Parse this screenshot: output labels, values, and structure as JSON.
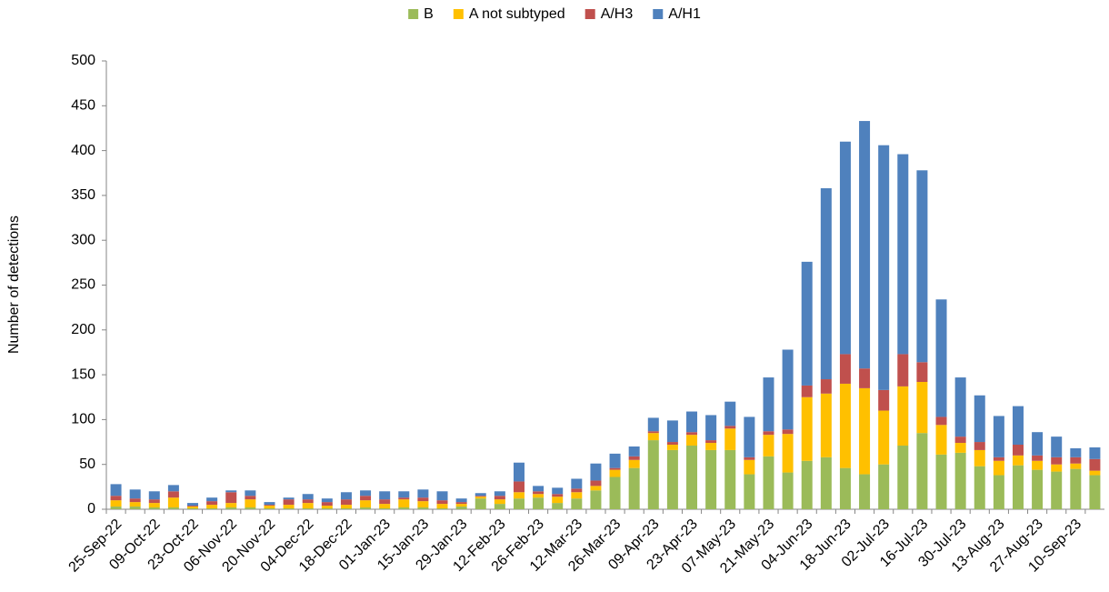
{
  "chart_data": {
    "type": "stacked-bar",
    "y_label": "Number of detections",
    "categories": [
      "25-Sep-22",
      null,
      "09-Oct-22",
      null,
      "23-Oct-22",
      null,
      "06-Nov-22",
      null,
      "20-Nov-22",
      null,
      "04-Dec-22",
      null,
      "18-Dec-22",
      null,
      "01-Jan-23",
      null,
      "15-Jan-23",
      null,
      "29-Jan-23",
      null,
      "12-Feb-23",
      null,
      "26-Feb-23",
      null,
      "12-Mar-23",
      null,
      "26-Mar-23",
      null,
      "09-Apr-23",
      null,
      "23-Apr-23",
      null,
      "07-May-23",
      null,
      "21-May-23",
      null,
      "04-Jun-23",
      null,
      "18-Jun-23",
      null,
      "02-Jul-23",
      null,
      "16-Jul-23",
      null,
      "30-Jul-23",
      null,
      "13-Aug-23",
      null,
      "27-Aug-23",
      null,
      "10-Sep-23",
      null
    ],
    "series": [
      {
        "name": "B",
        "color": "#9bbb59",
        "values": [
          3,
          3,
          2,
          2,
          1,
          1,
          2,
          2,
          1,
          1,
          1,
          1,
          1,
          2,
          1,
          2,
          2,
          1,
          3,
          12,
          6,
          12,
          13,
          7,
          12,
          21,
          36,
          46,
          77,
          66,
          71,
          66,
          66,
          39,
          59,
          41,
          54,
          58,
          46,
          39,
          50,
          71,
          85,
          61,
          63,
          48,
          38,
          49,
          44,
          42,
          45,
          38
        ]
      },
      {
        "name": "A not subtyped",
        "color": "#ffc000",
        "values": [
          7,
          5,
          5,
          11,
          2,
          4,
          5,
          9,
          3,
          4,
          6,
          3,
          4,
          8,
          5,
          9,
          7,
          5,
          3,
          2,
          5,
          7,
          4,
          7,
          7,
          5,
          8,
          9,
          8,
          6,
          12,
          8,
          24,
          16,
          24,
          43,
          71,
          71,
          94,
          96,
          60,
          66,
          57,
          33,
          11,
          18,
          16,
          11,
          10,
          8,
          6,
          5
        ]
      },
      {
        "name": "A/H3",
        "color": "#c0504d",
        "values": [
          5,
          4,
          4,
          7,
          1,
          4,
          12,
          4,
          1,
          6,
          4,
          4,
          6,
          5,
          5,
          2,
          4,
          4,
          2,
          1,
          4,
          12,
          3,
          3,
          4,
          6,
          2,
          4,
          2,
          3,
          3,
          3,
          3,
          3,
          4,
          5,
          13,
          16,
          33,
          22,
          23,
          36,
          22,
          9,
          7,
          9,
          4,
          12,
          6,
          8,
          7,
          13
        ]
      },
      {
        "name": "A/H1",
        "color": "#4f81bd",
        "values": [
          13,
          10,
          9,
          7,
          3,
          4,
          2,
          6,
          3,
          2,
          6,
          4,
          8,
          6,
          9,
          7,
          9,
          10,
          4,
          3,
          5,
          21,
          6,
          7,
          11,
          19,
          16,
          11,
          15,
          24,
          23,
          28,
          27,
          45,
          60,
          89,
          138,
          213,
          237,
          276,
          273,
          223,
          214,
          131,
          66,
          52,
          46,
          43,
          26,
          23,
          10,
          13
        ]
      }
    ],
    "ylim": [
      0,
      500
    ],
    "yticks": [
      0,
      50,
      100,
      150,
      200,
      250,
      300,
      350,
      400,
      450,
      500
    ],
    "legend": "top"
  }
}
